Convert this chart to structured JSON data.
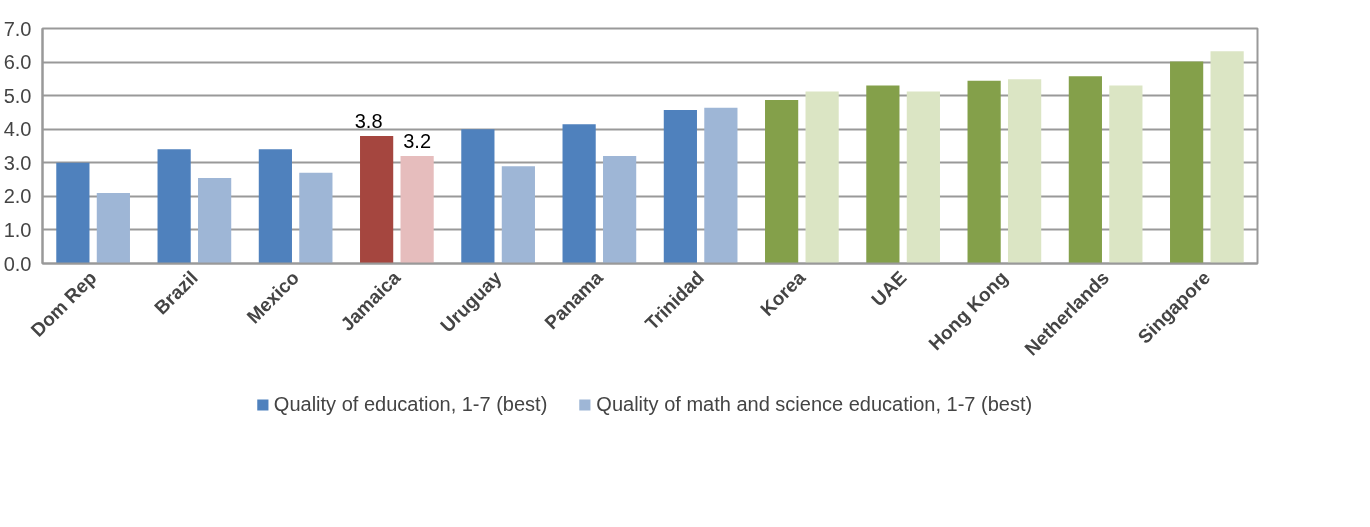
{
  "chart_data": {
    "type": "bar",
    "categories": [
      "Dom Rep",
      "Brazil",
      "Mexico",
      "Jamaica",
      "Uruguay",
      "Panama",
      "Trinidad",
      "Korea",
      "UAE",
      "Hong Kong",
      "Netherlands",
      "Singapore"
    ],
    "series": [
      {
        "name": "Quality of education, 1-7 (best)",
        "color": "#4f81bd",
        "colors": [
          "#4f81bd",
          "#4f81bd",
          "#4f81bd",
          "#a5463f",
          "#4f81bd",
          "#4f81bd",
          "#4f81bd",
          "#84a04a",
          "#84a04a",
          "#84a04a",
          "#84a04a",
          "#84a04a"
        ],
        "values": [
          3.0,
          3.4,
          3.4,
          3.8,
          4.0,
          4.15,
          4.57,
          4.87,
          5.3,
          5.44,
          5.58,
          6.02
        ],
        "value_labels": [
          null,
          null,
          null,
          "3.8",
          null,
          null,
          null,
          null,
          null,
          null,
          null,
          null
        ]
      },
      {
        "name": "Quality of math and science education, 1-7 (best)",
        "color": "#9eb6d6",
        "colors": [
          "#9eb6d6",
          "#9eb6d6",
          "#9eb6d6",
          "#e6bdbd",
          "#9eb6d6",
          "#9eb6d6",
          "#9eb6d6",
          "#dbe5c4",
          "#dbe5c4",
          "#dbe5c4",
          "#dbe5c4",
          "#dbe5c4"
        ],
        "values": [
          2.1,
          2.55,
          2.7,
          3.2,
          2.9,
          3.2,
          4.64,
          5.12,
          5.12,
          5.49,
          5.3,
          6.32
        ],
        "value_labels": [
          null,
          null,
          null,
          "3.2",
          null,
          null,
          null,
          null,
          null,
          null,
          null,
          null
        ]
      }
    ],
    "ylim": [
      0,
      7
    ],
    "yticks": [
      {
        "value": 0,
        "label": "0.0"
      },
      {
        "value": 1,
        "label": "1.0"
      },
      {
        "value": 2,
        "label": "2.0"
      },
      {
        "value": 3,
        "label": "3.0"
      },
      {
        "value": 4,
        "label": "4.0"
      },
      {
        "value": 5,
        "label": "5.0"
      },
      {
        "value": 6,
        "label": "6.0"
      },
      {
        "value": 7,
        "label": "7.0"
      }
    ],
    "grid": "y",
    "legend": "bottom"
  }
}
